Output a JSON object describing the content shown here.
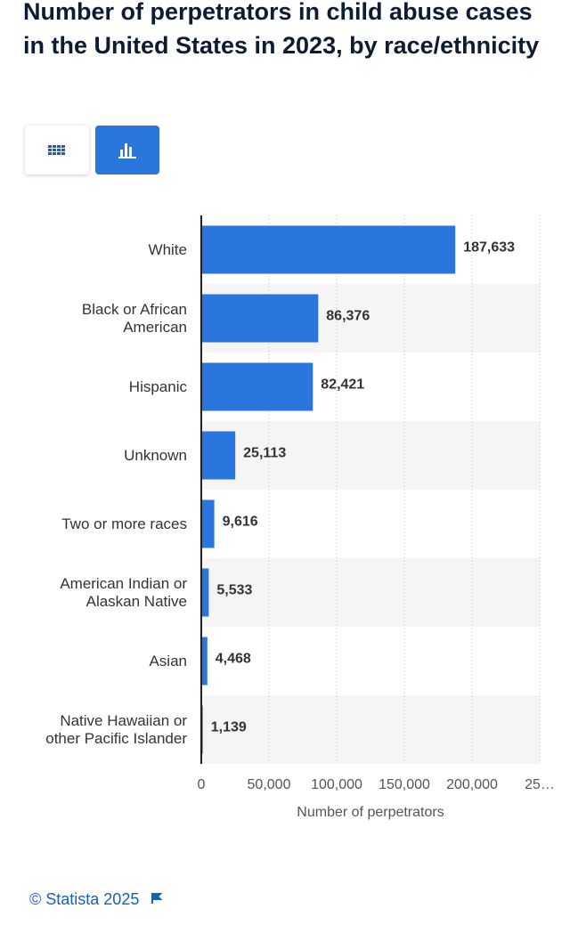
{
  "chart_data": {
    "type": "bar",
    "orientation": "horizontal",
    "title": "Number of perpetrators in child abuse cases in the United States in 2023, by race/ethnicity",
    "categories": [
      "White",
      "Black or African American",
      "Hispanic",
      "Unknown",
      "Two or more races",
      "American Indian or Alaskan Native",
      "Asian",
      "Native Hawaiian or other Pacific Islander"
    ],
    "values": [
      187633,
      86376,
      82421,
      25113,
      9616,
      5533,
      4468,
      1139
    ],
    "value_labels": [
      "187,633",
      "86,376",
      "82,421",
      "25,113",
      "9,616",
      "5,533",
      "4,468",
      "1,139"
    ],
    "color": "#2a76dd",
    "xlabel": "Number of perpetrators",
    "xlim": [
      0,
      250000
    ],
    "xticks": [
      0,
      {
        "value": 50000,
        "label": "50,000"
      },
      {
        "value": 100000,
        "label": "100,000"
      },
      {
        "value": 150000,
        "label": "150,000"
      },
      {
        "value": 200000,
        "label": "200,000"
      },
      {
        "value": 250000,
        "label": "25…"
      }
    ],
    "grid": true,
    "footer": "© Statista 2025"
  }
}
